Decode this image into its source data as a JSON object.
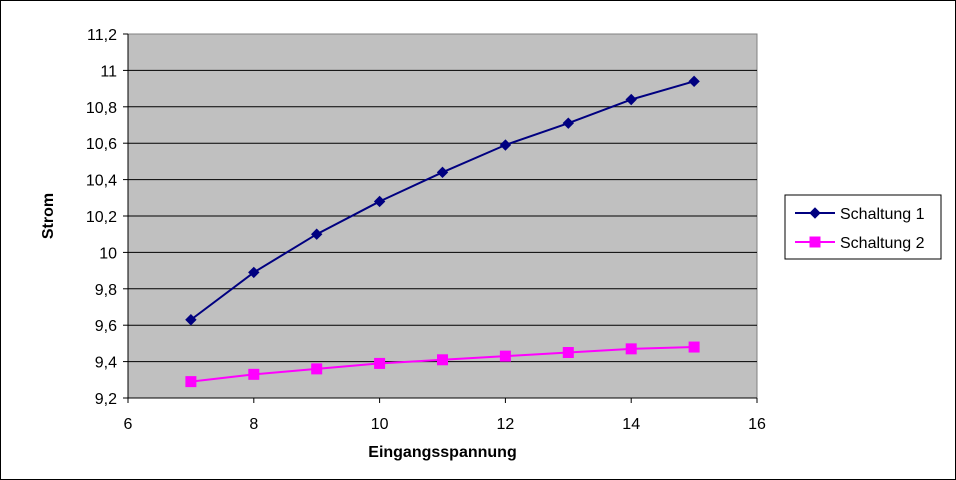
{
  "chart_data": {
    "type": "line",
    "xlabel": "Eingangsspannung",
    "ylabel": "Strom",
    "xlim": [
      6,
      16
    ],
    "ylim": [
      9.2,
      11.2
    ],
    "xticks": [
      6,
      8,
      10,
      12,
      14,
      16
    ],
    "xtick_labels": [
      "6",
      "8",
      "10",
      "12",
      "14",
      "16"
    ],
    "yticks": [
      9.2,
      9.4,
      9.6,
      9.8,
      10,
      10.2,
      10.4,
      10.6,
      10.8,
      11,
      11.2
    ],
    "ytick_labels": [
      "9,2",
      "9,4",
      "9,6",
      "9,8",
      "10",
      "10,2",
      "10,4",
      "10,6",
      "10,8",
      "11",
      "11,2"
    ],
    "grid": "horizontal",
    "plot_background": "#c0c0c0",
    "legend_position": "right",
    "x": [
      7,
      8,
      9,
      10,
      11,
      12,
      13,
      14,
      15
    ],
    "series": [
      {
        "name": "Schaltung 1",
        "marker": "diamond",
        "color": "#000080",
        "values": [
          9.63,
          9.89,
          10.1,
          10.28,
          10.44,
          10.59,
          10.71,
          10.84,
          10.94
        ]
      },
      {
        "name": "Schaltung 2",
        "marker": "square",
        "color": "#ff00ff",
        "values": [
          9.29,
          9.33,
          9.36,
          9.39,
          9.41,
          9.43,
          9.45,
          9.47,
          9.48
        ]
      }
    ]
  }
}
